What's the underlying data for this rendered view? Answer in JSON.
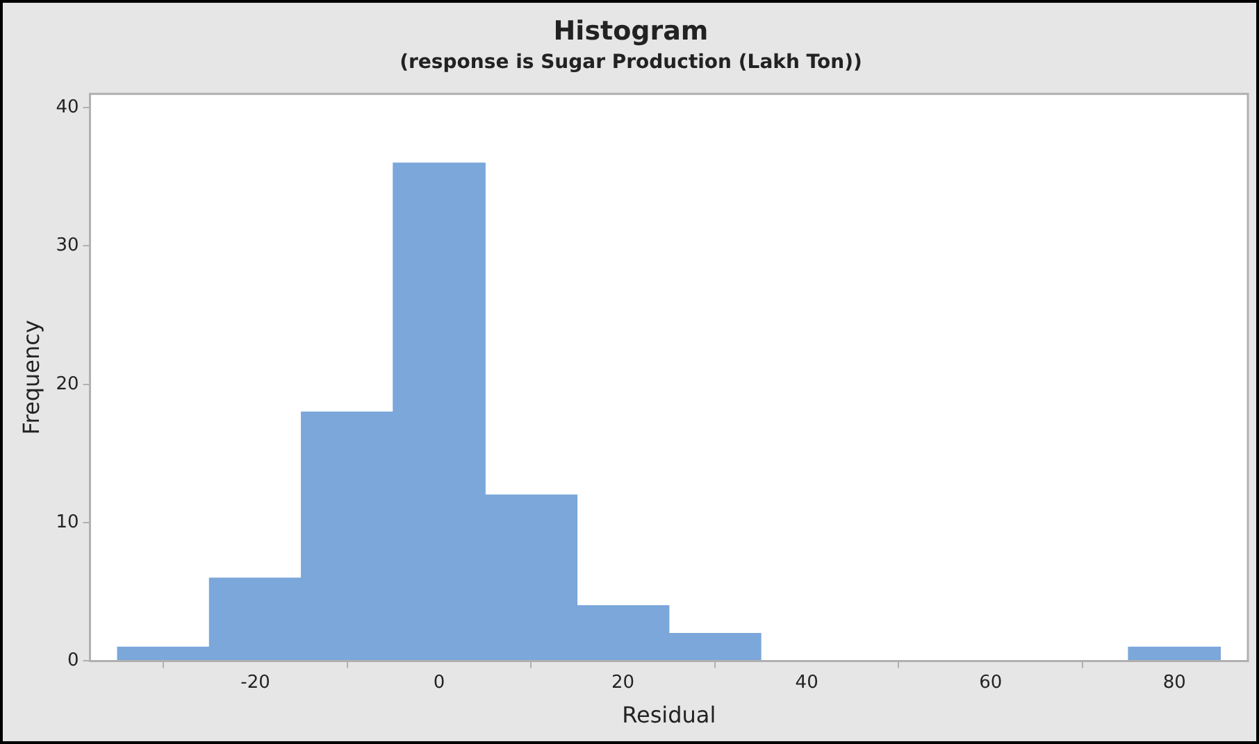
{
  "chart_data": {
    "type": "histogram",
    "title": "Histogram",
    "subtitle": "(response is Sugar Production (Lakh Ton))",
    "xlabel": "Residual",
    "ylabel": "Frequency",
    "bins": [
      -35,
      -25,
      -15,
      -5,
      5,
      15,
      25,
      35,
      45,
      55,
      65,
      75,
      85
    ],
    "values": [
      1,
      6,
      18,
      36,
      12,
      4,
      2,
      0,
      0,
      0,
      0,
      1
    ],
    "color": "#7ba7da",
    "xlim": [
      -38,
      88
    ],
    "xticks": [
      -20,
      0,
      20,
      40,
      60,
      80
    ],
    "ylim": [
      0,
      41
    ],
    "yticks": [
      0,
      10,
      20,
      30,
      40
    ],
    "grid": false,
    "legend": false
  }
}
